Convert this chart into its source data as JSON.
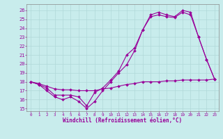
{
  "xlabel": "Windchill (Refroidissement éolien,°C)",
  "background_color": "#c8ecec",
  "line_color": "#990099",
  "grid_color": "#aacccc",
  "xlim": [
    -0.5,
    23.5
  ],
  "ylim": [
    14.7,
    26.7
  ],
  "yticks": [
    15,
    16,
    17,
    18,
    19,
    20,
    21,
    22,
    23,
    24,
    25,
    26
  ],
  "xticks": [
    0,
    1,
    2,
    3,
    4,
    5,
    6,
    7,
    8,
    9,
    10,
    11,
    12,
    13,
    14,
    15,
    16,
    17,
    18,
    19,
    20,
    21,
    22,
    23
  ],
  "series": [
    {
      "x": [
        0,
        1,
        2,
        3,
        4,
        5,
        6,
        7,
        8,
        9,
        10,
        11,
        12,
        13,
        14,
        15,
        16,
        17,
        18,
        19,
        20,
        21,
        22,
        23
      ],
      "y": [
        18.0,
        17.7,
        17.0,
        16.3,
        16.0,
        16.3,
        15.8,
        15.0,
        15.8,
        17.0,
        18.0,
        19.0,
        19.9,
        21.5,
        23.8,
        25.5,
        25.8,
        25.5,
        25.3,
        26.0,
        25.8,
        23.0,
        20.5,
        18.3
      ]
    },
    {
      "x": [
        0,
        1,
        2,
        3,
        4,
        5,
        6,
        7,
        8,
        9,
        10,
        11,
        12,
        13,
        14,
        15,
        16,
        17,
        18,
        19,
        20,
        21,
        22,
        23
      ],
      "y": [
        18.0,
        17.7,
        17.3,
        16.5,
        16.5,
        16.5,
        16.3,
        15.3,
        16.8,
        17.3,
        18.2,
        19.2,
        21.0,
        21.8,
        23.8,
        25.3,
        25.5,
        25.3,
        25.2,
        25.8,
        25.5,
        23.0,
        20.5,
        18.3
      ]
    },
    {
      "x": [
        0,
        1,
        2,
        3,
        4,
        5,
        6,
        7,
        8,
        9,
        10,
        11,
        12,
        13,
        14,
        15,
        16,
        17,
        18,
        19,
        20,
        21,
        22,
        23
      ],
      "y": [
        18.0,
        17.8,
        17.5,
        17.2,
        17.1,
        17.1,
        17.0,
        17.0,
        17.0,
        17.2,
        17.3,
        17.5,
        17.7,
        17.8,
        18.0,
        18.0,
        18.0,
        18.1,
        18.1,
        18.2,
        18.2,
        18.2,
        18.2,
        18.3
      ]
    }
  ]
}
